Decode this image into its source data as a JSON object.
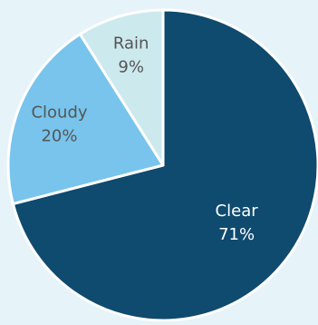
{
  "chart_data": {
    "type": "pie",
    "title": "",
    "slices": [
      {
        "label": "Clear",
        "value": 71,
        "value_label": "71%",
        "color": "#0f4a6f",
        "text_color": "#ffffff"
      },
      {
        "label": "Cloudy",
        "value": 20,
        "value_label": "20%",
        "color": "#78c4ec",
        "text_color": "#555555"
      },
      {
        "label": "Rain",
        "value": 9,
        "value_label": "9%",
        "color": "#cce9ee",
        "text_color": "#555555"
      }
    ],
    "start_angle_deg": 0,
    "direction": "clockwise",
    "legend": "none"
  },
  "colors": {
    "background": "#e6f3f8",
    "slice_border": "#ffffff"
  }
}
